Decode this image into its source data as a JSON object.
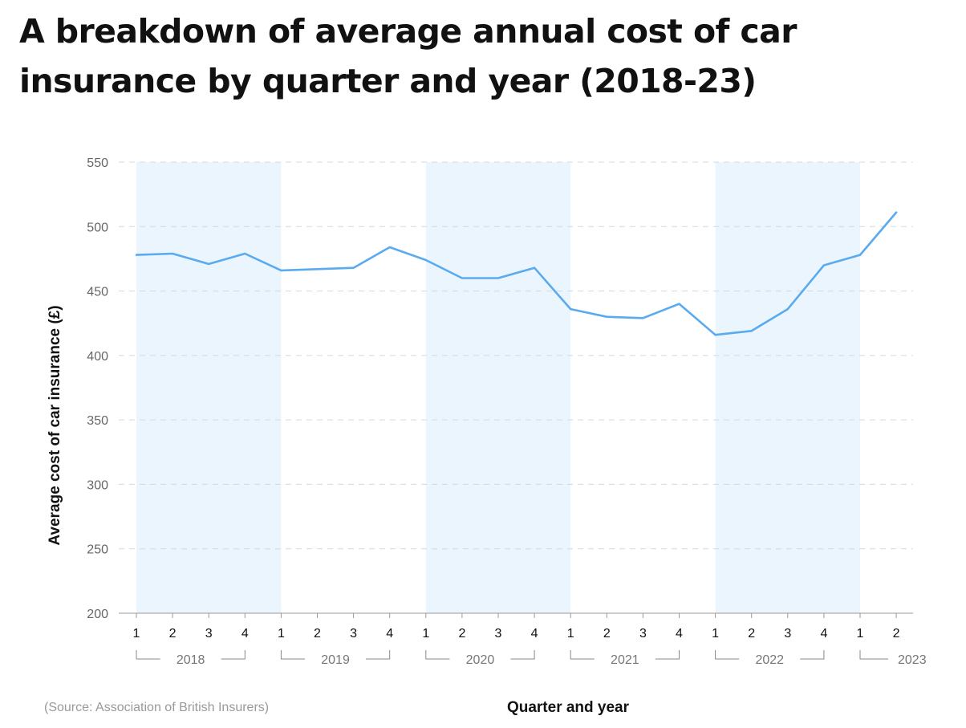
{
  "title": "A breakdown of average annual cost of car insurance by quarter and year (2018-23)",
  "source": "(Source: Association of British Insurers)",
  "colors": {
    "line": "#5aaaf0",
    "band": "#ebf5fd",
    "grid": "#d8d8d8",
    "axis": "#999999"
  },
  "chart_data": {
    "type": "line",
    "title": "A breakdown of average annual cost of car insurance by quarter and year (2018-23)",
    "xlabel": "Quarter and year",
    "ylabel": "Average cost of car insurance (£)",
    "ylim": [
      200,
      550
    ],
    "yticks": [
      200,
      250,
      300,
      350,
      400,
      450,
      500,
      550
    ],
    "grid": true,
    "quarters": [
      "1",
      "2",
      "3",
      "4",
      "1",
      "2",
      "3",
      "4",
      "1",
      "2",
      "3",
      "4",
      "1",
      "2",
      "3",
      "4",
      "1",
      "2",
      "3",
      "4",
      "1",
      "2"
    ],
    "years": [
      {
        "label": "2018",
        "start": 0,
        "end": 3,
        "shaded": true
      },
      {
        "label": "2019",
        "start": 4,
        "end": 7,
        "shaded": false
      },
      {
        "label": "2020",
        "start": 8,
        "end": 11,
        "shaded": true
      },
      {
        "label": "2021",
        "start": 12,
        "end": 15,
        "shaded": false
      },
      {
        "label": "2022",
        "start": 16,
        "end": 19,
        "shaded": true
      },
      {
        "label": "2023",
        "start": 20,
        "end": 21,
        "shaded": false
      }
    ],
    "series": [
      {
        "name": "Average annual cost",
        "values": [
          478,
          479,
          471,
          479,
          466,
          467,
          468,
          484,
          474,
          460,
          460,
          468,
          436,
          430,
          429,
          440,
          416,
          419,
          436,
          470,
          478,
          511
        ]
      }
    ]
  }
}
